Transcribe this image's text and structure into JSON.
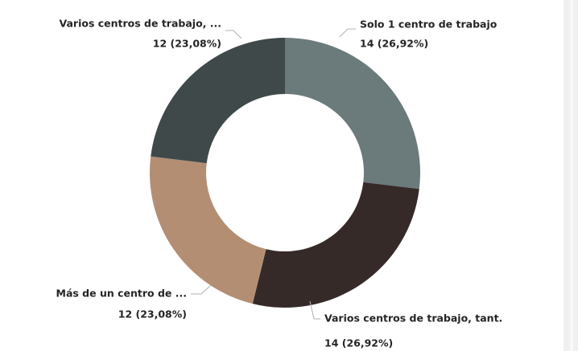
{
  "chart_data": {
    "type": "donut",
    "categories": [
      "Solo 1 centro de trabajo",
      "Varios centros de trabajo, tant.",
      "Más de un centro de ...",
      "Varios centros de trabajo, ..."
    ],
    "values": [
      14,
      14,
      12,
      12
    ],
    "value_labels": [
      "14 (26,92%)",
      "14 (26,92%)",
      "12 (23,08%)",
      "12 (23,08%)"
    ],
    "colors": [
      "#6b7a7a",
      "#352a28",
      "#b38e73",
      "#3f494a"
    ]
  }
}
